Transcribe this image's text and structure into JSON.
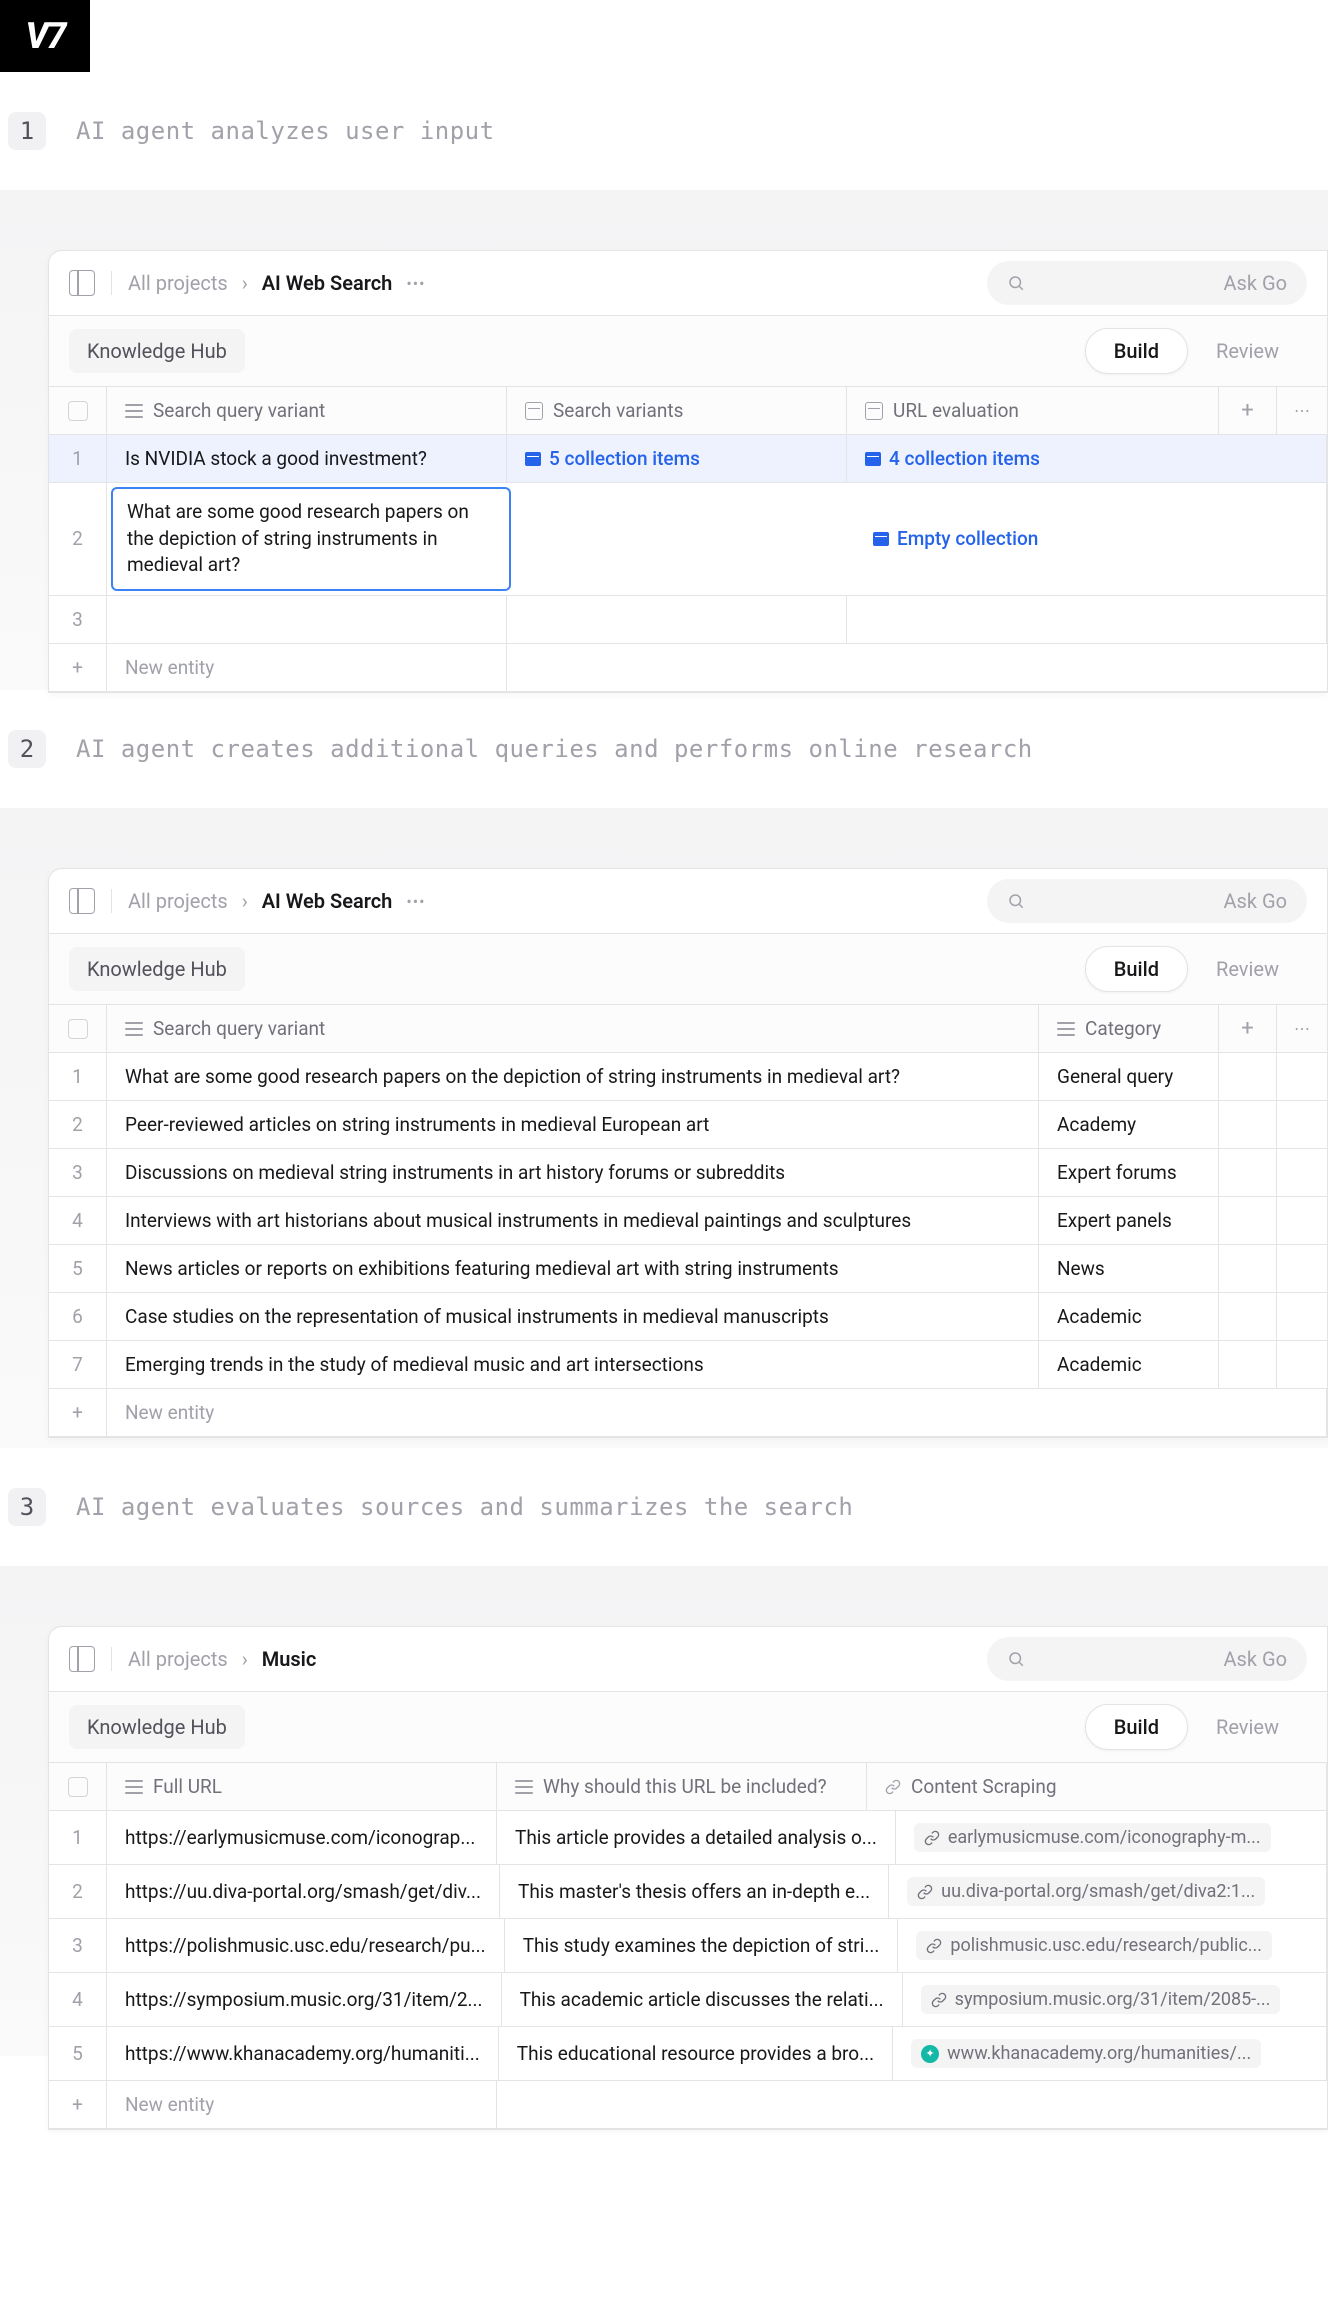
{
  "logo": "V7",
  "steps": [
    {
      "num": "1",
      "title": "AI agent analyzes user input"
    },
    {
      "num": "2",
      "title": "AI agent creates additional queries and performs online research"
    },
    {
      "num": "3",
      "title": "AI agent evaluates sources and summarizes the search"
    }
  ],
  "common": {
    "allProjects": "All projects",
    "askGo": "Ask Go",
    "hub": "Knowledge Hub",
    "build": "Build",
    "review": "Review",
    "newEntity": "New entity"
  },
  "panel1": {
    "breadcrumb": "AI Web Search",
    "columns": {
      "query": "Search query variant",
      "variants": "Search variants",
      "url": "URL evaluation"
    },
    "rows": [
      {
        "n": "1",
        "query": "Is NVIDIA stock a good investment?",
        "variants": "5 collection items",
        "url": "4 collection items"
      },
      {
        "n": "2",
        "query": "What are some good research papers on the depiction of string instruments in medieval art?",
        "variants": "",
        "url": "Empty collection"
      },
      {
        "n": "3",
        "query": "",
        "variants": "",
        "url": ""
      }
    ]
  },
  "panel2": {
    "breadcrumb": "AI Web Search",
    "columns": {
      "query": "Search query variant",
      "cat": "Category"
    },
    "rows": [
      {
        "n": "1",
        "query": "What are some good research papers on the depiction of string instruments in medieval art?",
        "cat": "General query"
      },
      {
        "n": "2",
        "query": "Peer-reviewed articles on string instruments in medieval European art",
        "cat": "Academy"
      },
      {
        "n": "3",
        "query": "Discussions on medieval string instruments in art history forums or subreddits",
        "cat": "Expert forums"
      },
      {
        "n": "4",
        "query": "Interviews with art historians about musical instruments in medieval paintings and sculptures",
        "cat": "Expert panels"
      },
      {
        "n": "5",
        "query": "News articles or reports on exhibitions featuring medieval art with string instruments",
        "cat": "News"
      },
      {
        "n": "6",
        "query": "Case studies on the representation of musical instruments in medieval manuscripts",
        "cat": "Academic"
      },
      {
        "n": "7",
        "query": "Emerging trends in the study of medieval music and art intersections",
        "cat": "Academic"
      }
    ]
  },
  "panel3": {
    "breadcrumb": "Music",
    "columns": {
      "url": "Full URL",
      "why": "Why should this URL be included?",
      "scrape": "Content Scraping"
    },
    "rows": [
      {
        "n": "1",
        "url": "https://earlymusicmuse.com/iconograp...",
        "why": "This article provides a detailed analysis o...",
        "scrape": "earlymusicmuse.com/iconography-m..."
      },
      {
        "n": "2",
        "url": "https://uu.diva-portal.org/smash/get/div...",
        "why": "This master's thesis offers an in-depth e...",
        "scrape": "uu.diva-portal.org/smash/get/diva2:1..."
      },
      {
        "n": "3",
        "url": "https://polishmusic.usc.edu/research/pu...",
        "why": "This study examines the depiction of stri...",
        "scrape": "polishmusic.usc.edu/research/public..."
      },
      {
        "n": "4",
        "url": "https://symposium.music.org/31/item/2...",
        "why": "This academic article discusses the relati...",
        "scrape": "symposium.music.org/31/item/2085-..."
      },
      {
        "n": "5",
        "url": "https://www.khanacademy.org/humaniti...",
        "why": "This educational resource provides a bro...",
        "scrape": "www.khanacademy.org/humanities/...",
        "khan": true
      }
    ]
  }
}
